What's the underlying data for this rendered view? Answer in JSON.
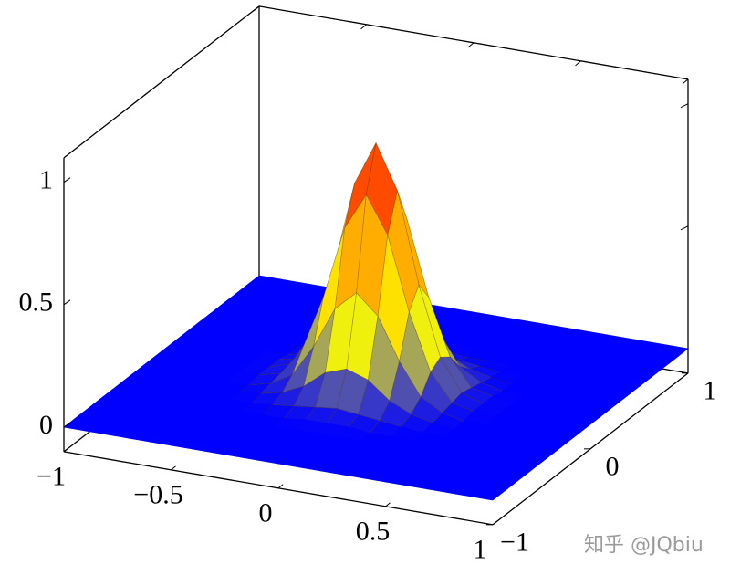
{
  "chart_data": {
    "type": "surface",
    "x": [
      -1,
      -0.9,
      -0.8,
      -0.7,
      -0.6,
      -0.5,
      -0.4,
      -0.3,
      -0.2,
      -0.1,
      0,
      0.1,
      0.2,
      0.3,
      0.4,
      0.5,
      0.6,
      0.7,
      0.8,
      0.9,
      1
    ],
    "y": [
      -1,
      -0.9,
      -0.8,
      -0.7,
      -0.6,
      -0.5,
      -0.4,
      -0.3,
      -0.2,
      -0.1,
      0,
      0.1,
      0.2,
      0.3,
      0.4,
      0.5,
      0.6,
      0.7,
      0.8,
      0.9,
      1
    ],
    "z": [
      [
        0,
        0,
        0,
        0,
        0,
        0,
        0,
        0,
        0,
        0,
        0,
        0,
        0,
        0,
        0,
        0,
        0,
        0,
        0,
        0,
        0
      ],
      [
        0,
        0,
        0,
        0,
        0,
        0,
        0,
        0,
        0,
        0,
        0,
        0,
        0,
        0,
        0,
        0,
        0,
        0,
        0,
        0,
        0
      ],
      [
        0,
        0,
        0,
        0,
        0,
        0,
        0,
        0,
        0,
        0,
        0,
        0,
        0,
        0,
        0,
        0,
        0,
        0,
        0,
        0,
        0
      ],
      [
        0,
        0,
        0,
        0,
        0,
        0,
        0,
        0,
        0,
        0,
        0,
        0,
        0,
        0,
        0,
        0,
        0,
        0,
        0,
        0,
        0
      ],
      [
        0,
        0,
        0,
        0,
        0,
        0,
        0,
        0,
        0,
        0,
        0,
        0,
        0,
        0,
        0,
        0,
        0,
        0,
        0,
        0,
        0
      ],
      [
        0,
        0,
        0,
        0,
        0,
        0,
        0,
        0,
        0,
        0.01,
        0.01,
        0.01,
        0,
        0,
        0,
        0,
        0,
        0,
        0,
        0,
        0
      ],
      [
        0,
        0,
        0,
        0,
        0,
        0,
        0,
        0.01,
        0.02,
        0.03,
        0.04,
        0.03,
        0.02,
        0.01,
        0,
        0,
        0,
        0,
        0,
        0,
        0
      ],
      [
        0,
        0,
        0,
        0,
        0,
        0,
        0.01,
        0.03,
        0.07,
        0.14,
        0.17,
        0.14,
        0.07,
        0.03,
        0.01,
        0,
        0,
        0,
        0,
        0,
        0
      ],
      [
        0,
        0,
        0,
        0,
        0,
        0,
        0.02,
        0.07,
        0.2,
        0.37,
        0.45,
        0.37,
        0.2,
        0.07,
        0.02,
        0,
        0,
        0,
        0,
        0,
        0
      ],
      [
        0,
        0,
        0,
        0,
        0,
        0.01,
        0.03,
        0.14,
        0.37,
        0.67,
        0.82,
        0.67,
        0.37,
        0.14,
        0.03,
        0.01,
        0,
        0,
        0,
        0,
        0
      ],
      [
        0,
        0,
        0,
        0,
        0,
        0.01,
        0.04,
        0.17,
        0.45,
        0.82,
        1,
        0.82,
        0.45,
        0.17,
        0.04,
        0.01,
        0,
        0,
        0,
        0,
        0
      ],
      [
        0,
        0,
        0,
        0,
        0,
        0.01,
        0.03,
        0.14,
        0.37,
        0.67,
        0.82,
        0.67,
        0.37,
        0.14,
        0.03,
        0.01,
        0,
        0,
        0,
        0,
        0
      ],
      [
        0,
        0,
        0,
        0,
        0,
        0,
        0.02,
        0.07,
        0.2,
        0.37,
        0.45,
        0.37,
        0.2,
        0.07,
        0.02,
        0,
        0,
        0,
        0,
        0,
        0
      ],
      [
        0,
        0,
        0,
        0,
        0,
        0,
        0.01,
        0.03,
        0.07,
        0.14,
        0.17,
        0.14,
        0.07,
        0.03,
        0.01,
        0,
        0,
        0,
        0,
        0,
        0
      ],
      [
        0,
        0,
        0,
        0,
        0,
        0,
        0,
        0.01,
        0.02,
        0.03,
        0.04,
        0.03,
        0.02,
        0.01,
        0,
        0,
        0,
        0,
        0,
        0,
        0
      ],
      [
        0,
        0,
        0,
        0,
        0,
        0,
        0,
        0,
        0,
        0.01,
        0.01,
        0.01,
        0,
        0,
        0,
        0,
        0,
        0,
        0,
        0,
        0
      ],
      [
        0,
        0,
        0,
        0,
        0,
        0,
        0,
        0,
        0,
        0,
        0,
        0,
        0,
        0,
        0,
        0,
        0,
        0,
        0,
        0,
        0
      ],
      [
        0,
        0,
        0,
        0,
        0,
        0,
        0,
        0,
        0,
        0,
        0,
        0,
        0,
        0,
        0,
        0,
        0,
        0,
        0,
        0,
        0
      ],
      [
        0,
        0,
        0,
        0,
        0,
        0,
        0,
        0,
        0,
        0,
        0,
        0,
        0,
        0,
        0,
        0,
        0,
        0,
        0,
        0,
        0
      ],
      [
        0,
        0,
        0,
        0,
        0,
        0,
        0,
        0,
        0,
        0,
        0,
        0,
        0,
        0,
        0,
        0,
        0,
        0,
        0,
        0,
        0
      ],
      [
        0,
        0,
        0,
        0,
        0,
        0,
        0,
        0,
        0,
        0,
        0,
        0,
        0,
        0,
        0,
        0,
        0,
        0,
        0,
        0,
        0
      ]
    ],
    "xlim": [
      -1,
      1
    ],
    "ylim": [
      -1,
      1
    ],
    "zlim": [
      -0.1,
      1.1
    ],
    "xticks": [
      {
        "value": -1,
        "label": "−1"
      },
      {
        "value": -0.5,
        "label": "−0.5"
      },
      0,
      0.5,
      1
    ],
    "yticks": [
      {
        "value": -1,
        "label": "−1"
      },
      0,
      1
    ],
    "zticks": [
      0,
      0.5,
      1
    ],
    "colormap": [
      {
        "value": 0,
        "color": "#0000ff"
      },
      {
        "value": 0.3,
        "color": "#ffff00"
      },
      {
        "value": 0.65,
        "color": "#ff9900"
      },
      {
        "value": 1,
        "color": "#ff0000"
      }
    ],
    "watermark": "知乎 @JQbiu"
  }
}
